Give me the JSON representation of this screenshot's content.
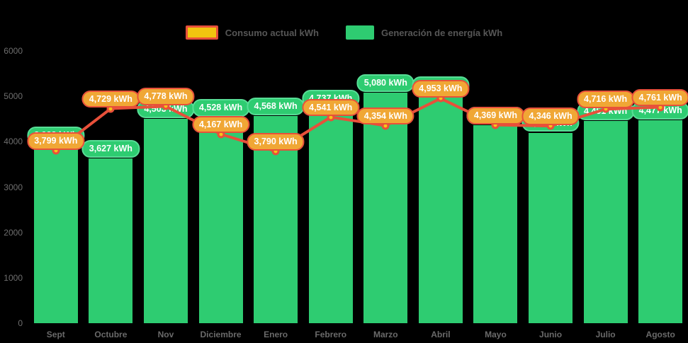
{
  "legend": {
    "items": [
      {
        "label": "Consumo actual kWh",
        "swatch": "consumo"
      },
      {
        "label": "Generación de energía kWh",
        "swatch": "generacion"
      }
    ]
  },
  "colors": {
    "background": "#000000",
    "bar_green": "#2ecc71",
    "bar_pill_border": "#58dd96",
    "line_red": "#e8503a",
    "consumo_pill_fill": "#f0a735",
    "legend_consumo_fill": "#f1c40f",
    "dot_fill": "#f5c518",
    "axis_text": "#6e6e6e",
    "pill_text": "#ffffff"
  },
  "chart_data": {
    "type": "bar",
    "title": "",
    "xlabel": "",
    "ylabel": "",
    "ylim": [
      0,
      6000
    ],
    "grid": false,
    "legend_position": "top-center",
    "y_ticks": [
      0,
      1000,
      2000,
      3000,
      4000,
      5000,
      6000
    ],
    "y_tick_labels": [
      "0",
      "1000",
      "2000",
      "3000",
      "4000",
      "5000",
      "6000"
    ],
    "categories": [
      "Sept",
      "Octubre",
      "Nov",
      "Diciembre",
      "Enero",
      "Febrero",
      "Marzo",
      "Abril",
      "Mayo",
      "Junio",
      "Julio",
      "Agosto"
    ],
    "series": [
      {
        "name": "Generación de energía kWh",
        "render": "bar",
        "values": [
          3928,
          3627,
          4503,
          4528,
          4568,
          4737,
          5080,
          5033,
          4362,
          4200,
          4451,
          4477
        ],
        "labels": [
          "3,928 kWh",
          "3,627 kWh",
          "4,503 kWh",
          "4,528 kWh",
          "4,568 kWh",
          "4,737 kWh",
          "5,080 kWh",
          "5,033 kWh",
          "4,362 kWh",
          "4,200 kWh",
          "4,451 kWh",
          "4,477 kWh"
        ]
      },
      {
        "name": "Consumo actual kWh",
        "render": "line",
        "values": [
          3799,
          4729,
          4778,
          4167,
          3790,
          4541,
          4354,
          4953,
          4369,
          4346,
          4716,
          4761
        ],
        "labels": [
          "3,799 kWh",
          "4,729 kWh",
          "4,778 kWh",
          "4,167 kWh",
          "3,790 kWh",
          "4,541 kWh",
          "4,354 kWh",
          "4,953 kWh",
          "4,369 kWh",
          "4,346 kWh",
          "4,716 kWh",
          "4,761 kWh"
        ]
      }
    ]
  }
}
